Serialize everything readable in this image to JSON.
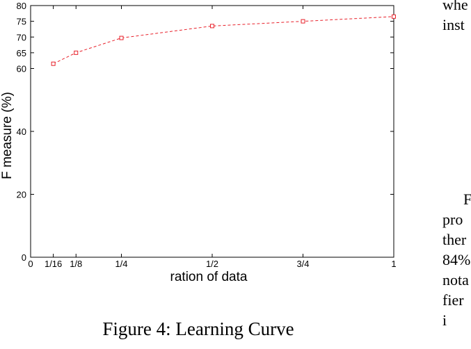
{
  "chart_data": {
    "type": "line",
    "x": [
      0.0625,
      0.125,
      0.25,
      0.5,
      0.75,
      1
    ],
    "series": [
      {
        "values": [
          61.5,
          65,
          69.7,
          73.5,
          75,
          76.5
        ],
        "color": "#e8202a",
        "line_style": "dashed",
        "marker": "square"
      }
    ],
    "xticks": [
      {
        "value": 0,
        "label": "0"
      },
      {
        "value": 0.0625,
        "label": "1/16"
      },
      {
        "value": 0.125,
        "label": "1/8"
      },
      {
        "value": 0.25,
        "label": "1/4"
      },
      {
        "value": 0.5,
        "label": "1/2"
      },
      {
        "value": 0.75,
        "label": "3/4"
      },
      {
        "value": 1,
        "label": "1"
      }
    ],
    "yticks": [
      0,
      20,
      40,
      60,
      65,
      70,
      75,
      80
    ],
    "xlim": [
      0,
      1
    ],
    "ylim": [
      0,
      80
    ],
    "xlabel": "ration of data",
    "ylabel": "F measure (%)",
    "grid": false,
    "legend": "none"
  },
  "caption": "Figure 4: Learning Curve",
  "side_text": {
    "top_lines": [
      "whe",
      "inst"
    ],
    "bottom_lines": [
      "F",
      "pro",
      "ther",
      "84%",
      "nota",
      "fier",
      "i"
    ]
  }
}
